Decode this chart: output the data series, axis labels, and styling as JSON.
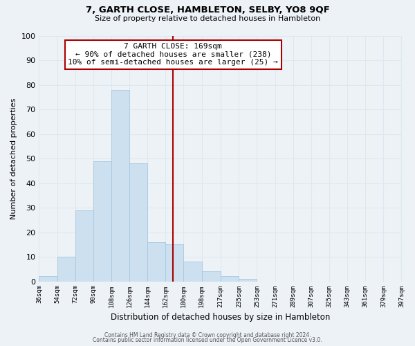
{
  "title": "7, GARTH CLOSE, HAMBLETON, SELBY, YO8 9QF",
  "subtitle": "Size of property relative to detached houses in Hambleton",
  "xlabel": "Distribution of detached houses by size in Hambleton",
  "ylabel": "Number of detached properties",
  "bin_edges": [
    36,
    54,
    72,
    90,
    108,
    126,
    144,
    162,
    180,
    198,
    217,
    235,
    253,
    271,
    289,
    307,
    325,
    343,
    361,
    379,
    397
  ],
  "bin_counts": [
    2,
    10,
    29,
    49,
    78,
    48,
    16,
    15,
    8,
    4,
    2,
    1,
    0,
    0,
    0,
    0,
    0,
    0,
    0,
    0
  ],
  "bar_color": "#cce0f0",
  "bar_edge_color": "#a8c8e0",
  "property_size": 169,
  "vline_color": "#aa0000",
  "annotation_line1": "7 GARTH CLOSE: 169sqm",
  "annotation_line2": "← 90% of detached houses are smaller (238)",
  "annotation_line3": "10% of semi-detached houses are larger (25) →",
  "annotation_box_color": "#ffffff",
  "annotation_box_edge": "#aa0000",
  "ylim": [
    0,
    100
  ],
  "yticks": [
    0,
    10,
    20,
    30,
    40,
    50,
    60,
    70,
    80,
    90,
    100
  ],
  "tick_labels": [
    "36sqm",
    "54sqm",
    "72sqm",
    "90sqm",
    "108sqm",
    "126sqm",
    "144sqm",
    "162sqm",
    "180sqm",
    "198sqm",
    "217sqm",
    "235sqm",
    "253sqm",
    "271sqm",
    "289sqm",
    "307sqm",
    "325sqm",
    "343sqm",
    "361sqm",
    "379sqm",
    "397sqm"
  ],
  "footer1": "Contains HM Land Registry data © Crown copyright and database right 2024.",
  "footer2": "Contains public sector information licensed under the Open Government Licence v3.0.",
  "grid_color": "#dde8f0",
  "background_color": "#edf2f7",
  "title_fontsize": 9.5,
  "subtitle_fontsize": 8,
  "ylabel_fontsize": 8,
  "xlabel_fontsize": 8.5,
  "tick_fontsize": 6.5,
  "annotation_fontsize": 8,
  "footer_fontsize": 5.5
}
